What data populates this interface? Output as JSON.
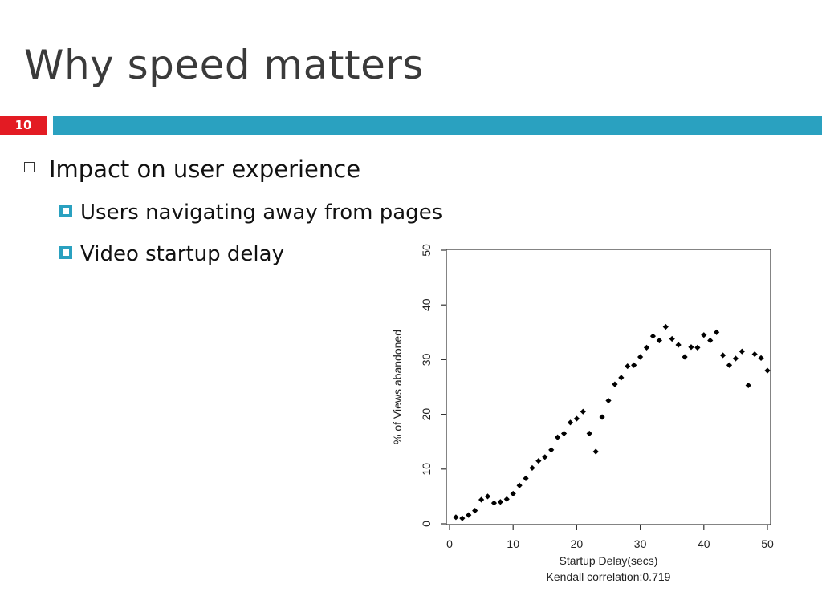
{
  "slide": {
    "title": "Why speed matters",
    "number": "10",
    "bullets": [
      {
        "text": "Impact on user experience"
      }
    ],
    "sub_bullets": [
      {
        "text": "Users navigating away from pages"
      },
      {
        "text": "Video startup delay"
      }
    ]
  },
  "colors": {
    "accent": "#2aa1c0",
    "number_badge": "#e31b23"
  },
  "chart_data": {
    "type": "scatter",
    "xlabel": "Startup Delay(secs)",
    "ylabel": "% of Views abandoned",
    "annotation": "Kendall correlation:0.719",
    "xlim": [
      0,
      50
    ],
    "ylim": [
      0,
      50
    ],
    "xticks": [
      0,
      10,
      20,
      30,
      40,
      50
    ],
    "yticks": [
      0,
      10,
      20,
      30,
      40,
      50
    ],
    "points": [
      [
        1,
        1.2
      ],
      [
        2,
        1.0
      ],
      [
        3,
        1.6
      ],
      [
        4,
        2.4
      ],
      [
        5,
        4.4
      ],
      [
        6,
        5.0
      ],
      [
        7,
        3.8
      ],
      [
        8,
        4.0
      ],
      [
        9,
        4.5
      ],
      [
        10,
        5.5
      ],
      [
        11,
        7.0
      ],
      [
        12,
        8.3
      ],
      [
        13,
        10.2
      ],
      [
        14,
        11.5
      ],
      [
        15,
        12.2
      ],
      [
        16,
        13.5
      ],
      [
        17,
        15.8
      ],
      [
        18,
        16.5
      ],
      [
        19,
        18.5
      ],
      [
        20,
        19.2
      ],
      [
        21,
        20.5
      ],
      [
        22,
        16.5
      ],
      [
        23,
        13.2
      ],
      [
        24,
        19.5
      ],
      [
        25,
        22.5
      ],
      [
        26,
        25.5
      ],
      [
        27,
        26.7
      ],
      [
        28,
        28.8
      ],
      [
        29,
        29.0
      ],
      [
        30,
        30.5
      ],
      [
        31,
        32.2
      ],
      [
        32,
        34.3
      ],
      [
        33,
        33.5
      ],
      [
        34,
        36.0
      ],
      [
        35,
        33.8
      ],
      [
        36,
        32.7
      ],
      [
        37,
        30.5
      ],
      [
        38,
        32.3
      ],
      [
        39,
        32.2
      ],
      [
        40,
        34.5
      ],
      [
        41,
        33.5
      ],
      [
        42,
        35.0
      ],
      [
        43,
        30.8
      ],
      [
        44,
        29.0
      ],
      [
        45,
        30.2
      ],
      [
        46,
        31.5
      ],
      [
        47,
        25.3
      ],
      [
        48,
        31.0
      ],
      [
        49,
        30.3
      ],
      [
        50,
        28.0
      ]
    ]
  }
}
